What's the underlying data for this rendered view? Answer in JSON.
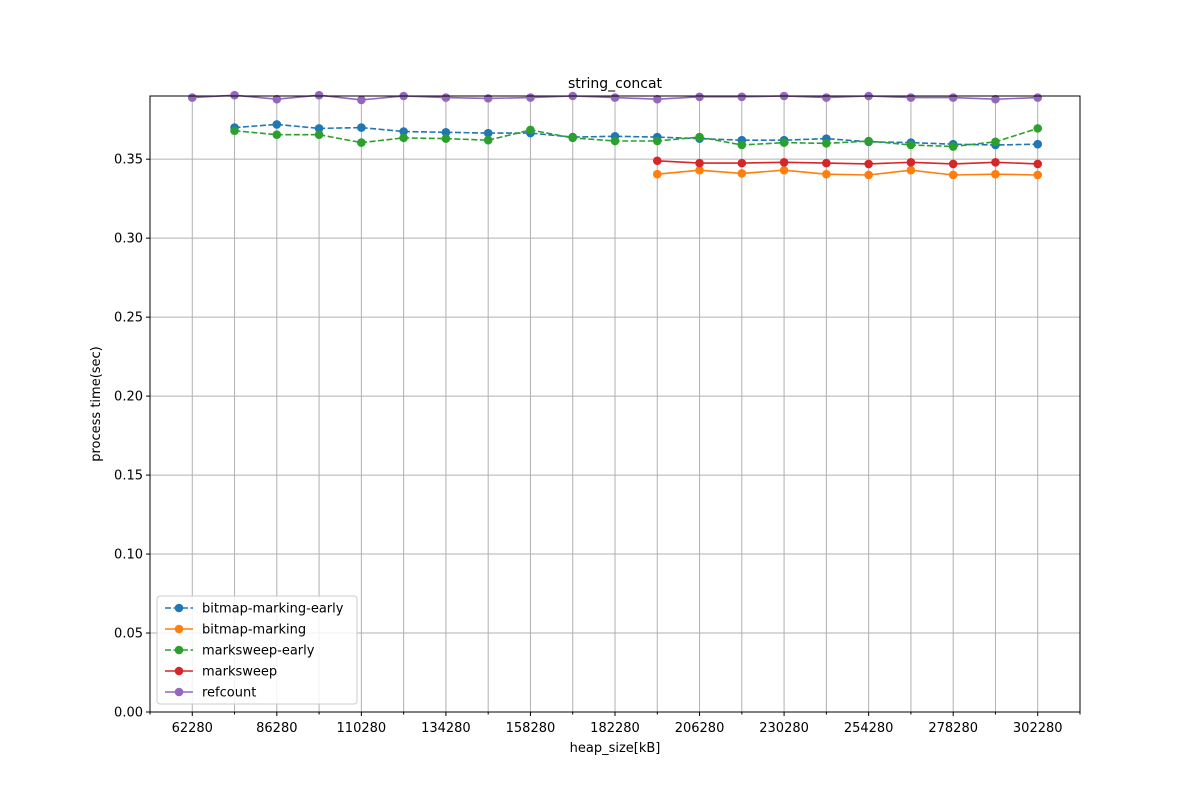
{
  "chart_data": {
    "type": "line",
    "title": "string_concat",
    "xlabel": "heap_size[kB]",
    "ylabel": "process time(sec)",
    "xlim": [
      50280,
      314280
    ],
    "ylim": [
      0.0,
      0.39
    ],
    "xticks": [
      62280,
      86280,
      110280,
      134280,
      158280,
      182280,
      206280,
      230280,
      254280,
      278280,
      302280
    ],
    "xtick_labels": [
      "62280",
      "86280",
      "110280",
      "134280",
      "158280",
      "182280",
      "206280",
      "230280",
      "254280",
      "278280",
      "302280"
    ],
    "yticks": [
      0.0,
      0.05,
      0.1,
      0.15,
      0.2,
      0.25,
      0.3,
      0.35
    ],
    "ytick_labels": [
      "0.00",
      "0.05",
      "0.10",
      "0.15",
      "0.20",
      "0.25",
      "0.30",
      "0.35"
    ],
    "grid": true,
    "legend_position": "lower-left",
    "series": [
      {
        "name": "bitmap-marking-early",
        "color": "#1f77b4",
        "linestyle": "dashed",
        "marker": "circle",
        "x": [
          74280,
          86280,
          98280,
          110280,
          122280,
          134280,
          146280,
          158280,
          170280,
          182280,
          194280,
          206280,
          218280,
          230280,
          242280,
          254280,
          266280,
          278280,
          290280,
          302280
        ],
        "y": [
          0.37,
          0.372,
          0.3695,
          0.37,
          0.3675,
          0.367,
          0.3665,
          0.3665,
          0.364,
          0.3645,
          0.364,
          0.363,
          0.362,
          0.362,
          0.363,
          0.361,
          0.3605,
          0.3595,
          0.359,
          0.3595
        ]
      },
      {
        "name": "bitmap-marking",
        "color": "#ff7f0e",
        "linestyle": "solid",
        "marker": "circle",
        "x": [
          194280,
          206280,
          218280,
          230280,
          242280,
          254280,
          266280,
          278280,
          290280,
          302280
        ],
        "y": [
          0.3405,
          0.343,
          0.341,
          0.343,
          0.3405,
          0.34,
          0.343,
          0.34,
          0.3405,
          0.34
        ]
      },
      {
        "name": "marksweep-early",
        "color": "#2ca02c",
        "linestyle": "dashed",
        "marker": "circle",
        "x": [
          74280,
          86280,
          98280,
          110280,
          122280,
          134280,
          146280,
          158280,
          170280,
          182280,
          194280,
          206280,
          218280,
          230280,
          242280,
          254280,
          266280,
          278280,
          290280,
          302280
        ],
        "y": [
          0.368,
          0.3655,
          0.3655,
          0.3605,
          0.3635,
          0.363,
          0.362,
          0.3685,
          0.3635,
          0.3615,
          0.3615,
          0.364,
          0.359,
          0.3605,
          0.36,
          0.3615,
          0.359,
          0.358,
          0.361,
          0.3695
        ]
      },
      {
        "name": "marksweep",
        "color": "#d62728",
        "linestyle": "solid",
        "marker": "circle",
        "x": [
          194280,
          206280,
          218280,
          230280,
          242280,
          254280,
          266280,
          278280,
          290280,
          302280
        ],
        "y": [
          0.349,
          0.3475,
          0.3475,
          0.348,
          0.3475,
          0.347,
          0.348,
          0.347,
          0.348,
          0.347
        ]
      },
      {
        "name": "refcount",
        "color": "#9467bd",
        "linestyle": "solid",
        "marker": "circle",
        "x": [
          62280,
          74280,
          86280,
          98280,
          110280,
          122280,
          134280,
          146280,
          158280,
          170280,
          182280,
          194280,
          206280,
          218280,
          230280,
          242280,
          254280,
          266280,
          278280,
          290280,
          302280
        ],
        "y": [
          0.389,
          0.3905,
          0.388,
          0.3905,
          0.3875,
          0.39,
          0.389,
          0.3885,
          0.389,
          0.39,
          0.389,
          0.388,
          0.3895,
          0.3895,
          0.39,
          0.389,
          0.39,
          0.389,
          0.389,
          0.388,
          0.389
        ]
      }
    ]
  }
}
